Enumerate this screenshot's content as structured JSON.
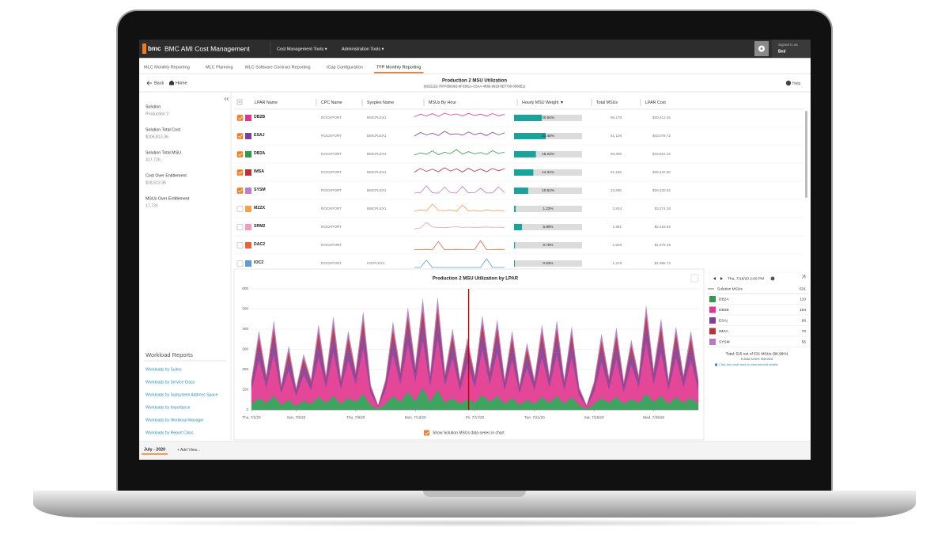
{
  "header": {
    "logo": "bmc",
    "app_title": "BMC AMI Cost Management",
    "menus": [
      "Cost Management Tools ▾",
      "Administration Tools ▾"
    ],
    "signed_in_label": "Signed in as",
    "user": "Bed"
  },
  "tabs": [
    "MLC Monthly Reporting",
    "MLC Planning",
    "MLC Software Contract Reporting",
    "ICap Configuration",
    "TFP Monthly Reporting"
  ],
  "active_tab": 4,
  "toolbar": {
    "back": "Back",
    "home": "Home",
    "title": "Production 2 MSU Utilization",
    "subtitle": "(0922222-70FF858363-0F3381A-C5AA-4B56-9918-6EF700-0008E1)",
    "help": "Help"
  },
  "summary": [
    {
      "label": "Solution",
      "value": "Production 2"
    },
    {
      "label": "Solution Total Cost",
      "value": "$206,813.36"
    },
    {
      "label": "Solution Total MSU",
      "value": "317,726"
    },
    {
      "label": "Cost Over Entitlement",
      "value": "$18,613.36"
    },
    {
      "label": "MSUs Over Entitlement",
      "value": "17,726"
    }
  ],
  "workload_reports": {
    "title": "Workload Reports",
    "links": [
      "Workloads by Suites",
      "Workloads by Service Class",
      "Workloads by Subsystem Address Space",
      "Workloads by Importance",
      "Workloads by Workload Manager",
      "Workloads by Report Class"
    ]
  },
  "table": {
    "columns": [
      "LPAR Name",
      "CPC Name",
      "Sysplex Name",
      "MSUs By Hour",
      "Hourly MSU Weight ▼",
      "Total MSUs",
      "LPAR Cost"
    ],
    "rows": [
      {
        "name": "DB2B",
        "color": "#e0368c",
        "checked": true,
        "cpc": "ROCKPORT",
        "sysplex": "BMCPLEX1",
        "msus_by_hour": [
          60,
          90,
          70,
          95,
          65,
          100,
          80,
          92,
          70,
          98,
          75,
          90,
          68,
          96,
          72,
          88
        ],
        "weight": 20.54,
        "weight_label": "20.54%",
        "total_msus": "85,179",
        "lpar_cost": "$30,412.45"
      },
      {
        "name": "ESAJ",
        "color": "#7b3f9e",
        "checked": true,
        "cpc": "ROCKPORT",
        "sysplex": "BMCPLEX1",
        "msus_by_hour": [
          40,
          70,
          50,
          65,
          45,
          80,
          55,
          60,
          48,
          75,
          52,
          66,
          44,
          72,
          50,
          68
        ],
        "weight": 23.48,
        "weight_label": "23.48%",
        "total_msus": "51,129",
        "lpar_cost": "$43,078.72"
      },
      {
        "name": "DB2A",
        "color": "#2e9a4e",
        "checked": true,
        "cpc": "ROCKPORT",
        "sysplex": "BMCPLEX1",
        "msus_by_hour": [
          30,
          45,
          35,
          60,
          32,
          50,
          40,
          70,
          36,
          55,
          38,
          48,
          34,
          62,
          40,
          52
        ],
        "weight": 16.22,
        "weight_label": "16.22%",
        "total_msus": "55,309",
        "lpar_cost": "$43,561.32"
      },
      {
        "name": "IMSA",
        "color": "#b8323a",
        "checked": true,
        "cpc": "ROCKPORT",
        "sysplex": "BMCPLEX1",
        "msus_by_hour": [
          35,
          60,
          40,
          55,
          38,
          65,
          42,
          58,
          36,
          62,
          40,
          56,
          38,
          60,
          44,
          58
        ],
        "weight": 14.31,
        "weight_label": "14.31%",
        "total_msus": "51,156",
        "lpar_cost": "$39,437.60"
      },
      {
        "name": "SYSM",
        "color": "#c07cc8",
        "checked": true,
        "cpc": "ROCKPORT",
        "sysplex": "BMCPLEX1",
        "msus_by_hour": [
          10,
          12,
          40,
          11,
          10,
          35,
          12,
          10,
          38,
          11,
          12,
          30,
          10,
          11,
          36,
          12
        ],
        "weight": 10.51,
        "weight_label": "10.51%",
        "total_msus": "22,685",
        "lpar_cost": "$28,232.62"
      },
      {
        "name": "MZZX",
        "color": "#f5a04a",
        "checked": false,
        "cpc": "ROCKPORT",
        "sysplex": "BMCPLEX1",
        "msus_by_hour": [
          5,
          8,
          6,
          20,
          7,
          6,
          8,
          5,
          18,
          6,
          7,
          5,
          8,
          6,
          7,
          5
        ],
        "weight": 1.22,
        "weight_label": "1.22%",
        "total_msus": "2,834",
        "lpar_cost": "$3,274.26"
      },
      {
        "name": "SRM2",
        "color": "#f49ac1",
        "checked": false,
        "cpc": "ROCKPORT",
        "msus_by_hour": [
          20,
          25,
          60,
          30,
          28,
          26,
          30,
          32,
          28,
          30,
          27,
          29,
          31,
          28,
          30,
          26
        ],
        "weight": 5.9,
        "weight_label": "5.90%",
        "total_msus": "1,961",
        "lpar_cost": "$2,416.92"
      },
      {
        "name": "DAC2",
        "color": "#e5643a",
        "checked": false,
        "cpc": "ROCKPORT",
        "msus_by_hour": [
          2,
          2,
          3,
          2,
          40,
          2,
          2,
          3,
          2,
          2,
          2,
          45,
          2,
          2,
          3,
          2
        ],
        "weight": 0.7,
        "weight_label": "0.70%",
        "total_msus": "1,525",
        "lpar_cost": "$1,875.25"
      },
      {
        "name": "IOC2",
        "color": "#5b9bd5",
        "checked": false,
        "cpc": "ROCKPORT",
        "sysplex": "IOCPLEX1",
        "msus_by_hour": [
          3,
          3,
          30,
          3,
          3,
          3,
          3,
          3,
          3,
          3,
          3,
          3,
          35,
          3,
          3,
          3
        ],
        "weight": 0.63,
        "weight_label": "0.63%",
        "total_msus": "1,219",
        "lpar_cost": "$1,885.72"
      }
    ]
  },
  "chart_data": {
    "type": "area",
    "stacked": true,
    "title": "Production 2 MSU Utilization by LPAR",
    "x": [
      0,
      0.5,
      1,
      1.5,
      2,
      2.5,
      3,
      3.5,
      4,
      4.5,
      5,
      5.5,
      6,
      6.5,
      7,
      7.5,
      8,
      8.5,
      9,
      9.5,
      10,
      10.5,
      11,
      11.5,
      12,
      12.5,
      13,
      13.5,
      14,
      14.5,
      15,
      15.5,
      16,
      16.5,
      17,
      17.5,
      18,
      18.5,
      19,
      19.5,
      20,
      20.5,
      21,
      21.5,
      22,
      22.5,
      23,
      23.5,
      24,
      24.5,
      25,
      25.5,
      26,
      26.5,
      27,
      27.5,
      28,
      28.5,
      29,
      29.5,
      30
    ],
    "xlim": [
      0,
      30
    ],
    "xticks": [
      {
        "value": 0,
        "label": "Thu, 7/2/20"
      },
      {
        "value": 3,
        "label": "Sun, 7/5/20"
      },
      {
        "value": 7,
        "label": "Thu, 7/9/20"
      },
      {
        "value": 11,
        "label": "Mon, 7/13/20"
      },
      {
        "value": 15,
        "label": "Fri, 7/17/20"
      },
      {
        "value": 19,
        "label": "Tue, 7/21/20"
      },
      {
        "value": 23,
        "label": "Sat, 7/25/20"
      },
      {
        "value": 27,
        "label": "Wed, 7/29/20"
      }
    ],
    "ylim": [
      0,
      600
    ],
    "yticks": [
      0,
      100,
      200,
      300,
      400,
      500,
      600
    ],
    "grid": true,
    "cursor_x": 14.58,
    "series": [
      {
        "name": "DB2A",
        "color": "#2f9c52",
        "hover_value": 110,
        "values": [
          30,
          60,
          35,
          70,
          25,
          50,
          20,
          45,
          30,
          65,
          35,
          70,
          30,
          60,
          40,
          80,
          25,
          5,
          30,
          70,
          40,
          90,
          45,
          110,
          40,
          100,
          35,
          60,
          30,
          55,
          35,
          75,
          40,
          70,
          30,
          60,
          25,
          50,
          30,
          65,
          35,
          70,
          30,
          65,
          25,
          5,
          30,
          60,
          35,
          65,
          30,
          55,
          35,
          80,
          40,
          70,
          30,
          65,
          35,
          60,
          30
        ]
      },
      {
        "name": "DB2B",
        "color": "#e2378f",
        "hover_value": 184,
        "values": [
          70,
          190,
          80,
          210,
          60,
          150,
          50,
          130,
          70,
          200,
          80,
          220,
          75,
          190,
          90,
          230,
          60,
          10,
          70,
          210,
          90,
          240,
          100,
          240,
          80,
          260,
          90,
          200,
          70,
          180,
          80,
          230,
          90,
          220,
          70,
          190,
          60,
          160,
          70,
          200,
          80,
          210,
          70,
          200,
          50,
          10,
          60,
          180,
          70,
          190,
          60,
          170,
          80,
          260,
          90,
          220,
          70,
          200,
          80,
          190,
          70
        ]
      },
      {
        "name": "ESAj",
        "color": "#7e3f9f",
        "hover_value": 96,
        "values": [
          25,
          70,
          30,
          80,
          20,
          55,
          20,
          50,
          25,
          75,
          30,
          80,
          25,
          70,
          30,
          85,
          20,
          3,
          25,
          75,
          35,
          85,
          40,
          90,
          30,
          95,
          30,
          70,
          25,
          60,
          30,
          80,
          35,
          75,
          25,
          70,
          20,
          60,
          25,
          75,
          30,
          80,
          25,
          75,
          20,
          3,
          25,
          65,
          30,
          70,
          25,
          60,
          30,
          85,
          35,
          80,
          25,
          75,
          30,
          70,
          25
        ]
      },
      {
        "name": "IMSA",
        "color": "#b8323a",
        "hover_value": 70,
        "values": [
          15,
          40,
          15,
          45,
          10,
          35,
          10,
          30,
          15,
          45,
          15,
          50,
          15,
          40,
          20,
          50,
          10,
          2,
          15,
          45,
          20,
          50,
          20,
          60,
          15,
          55,
          15,
          40,
          15,
          35,
          15,
          45,
          20,
          45,
          15,
          40,
          10,
          35,
          15,
          45,
          15,
          45,
          15,
          40,
          10,
          2,
          15,
          40,
          15,
          45,
          15,
          35,
          15,
          50,
          20,
          45,
          15,
          40,
          15,
          40,
          15
        ]
      },
      {
        "name": "SYSM",
        "color": "#b57ac5",
        "hover_value": 55,
        "values": [
          10,
          30,
          10,
          35,
          8,
          25,
          8,
          20,
          10,
          35,
          10,
          40,
          10,
          30,
          12,
          40,
          8,
          1,
          10,
          35,
          12,
          40,
          15,
          50,
          10,
          45,
          12,
          30,
          10,
          25,
          10,
          35,
          12,
          35,
          10,
          30,
          8,
          25,
          10,
          35,
          10,
          35,
          10,
          30,
          8,
          1,
          10,
          30,
          12,
          35,
          10,
          25,
          10,
          40,
          12,
          35,
          10,
          30,
          10,
          30,
          10
        ]
      }
    ]
  },
  "hover": {
    "time": "Thu, 7/16/20 2:00 PM",
    "total_label": "Solution MSUs",
    "total_value": 531,
    "summary": "Total: 515 out of 531 MSUs (96.99%)",
    "selected": "5 data series selected",
    "hint": "Click the chart area to view interval details"
  },
  "show_solution_label": "Show Solution MSUs data series in chart",
  "footer_tabs": [
    "July - 2020",
    "+ Add View..."
  ]
}
